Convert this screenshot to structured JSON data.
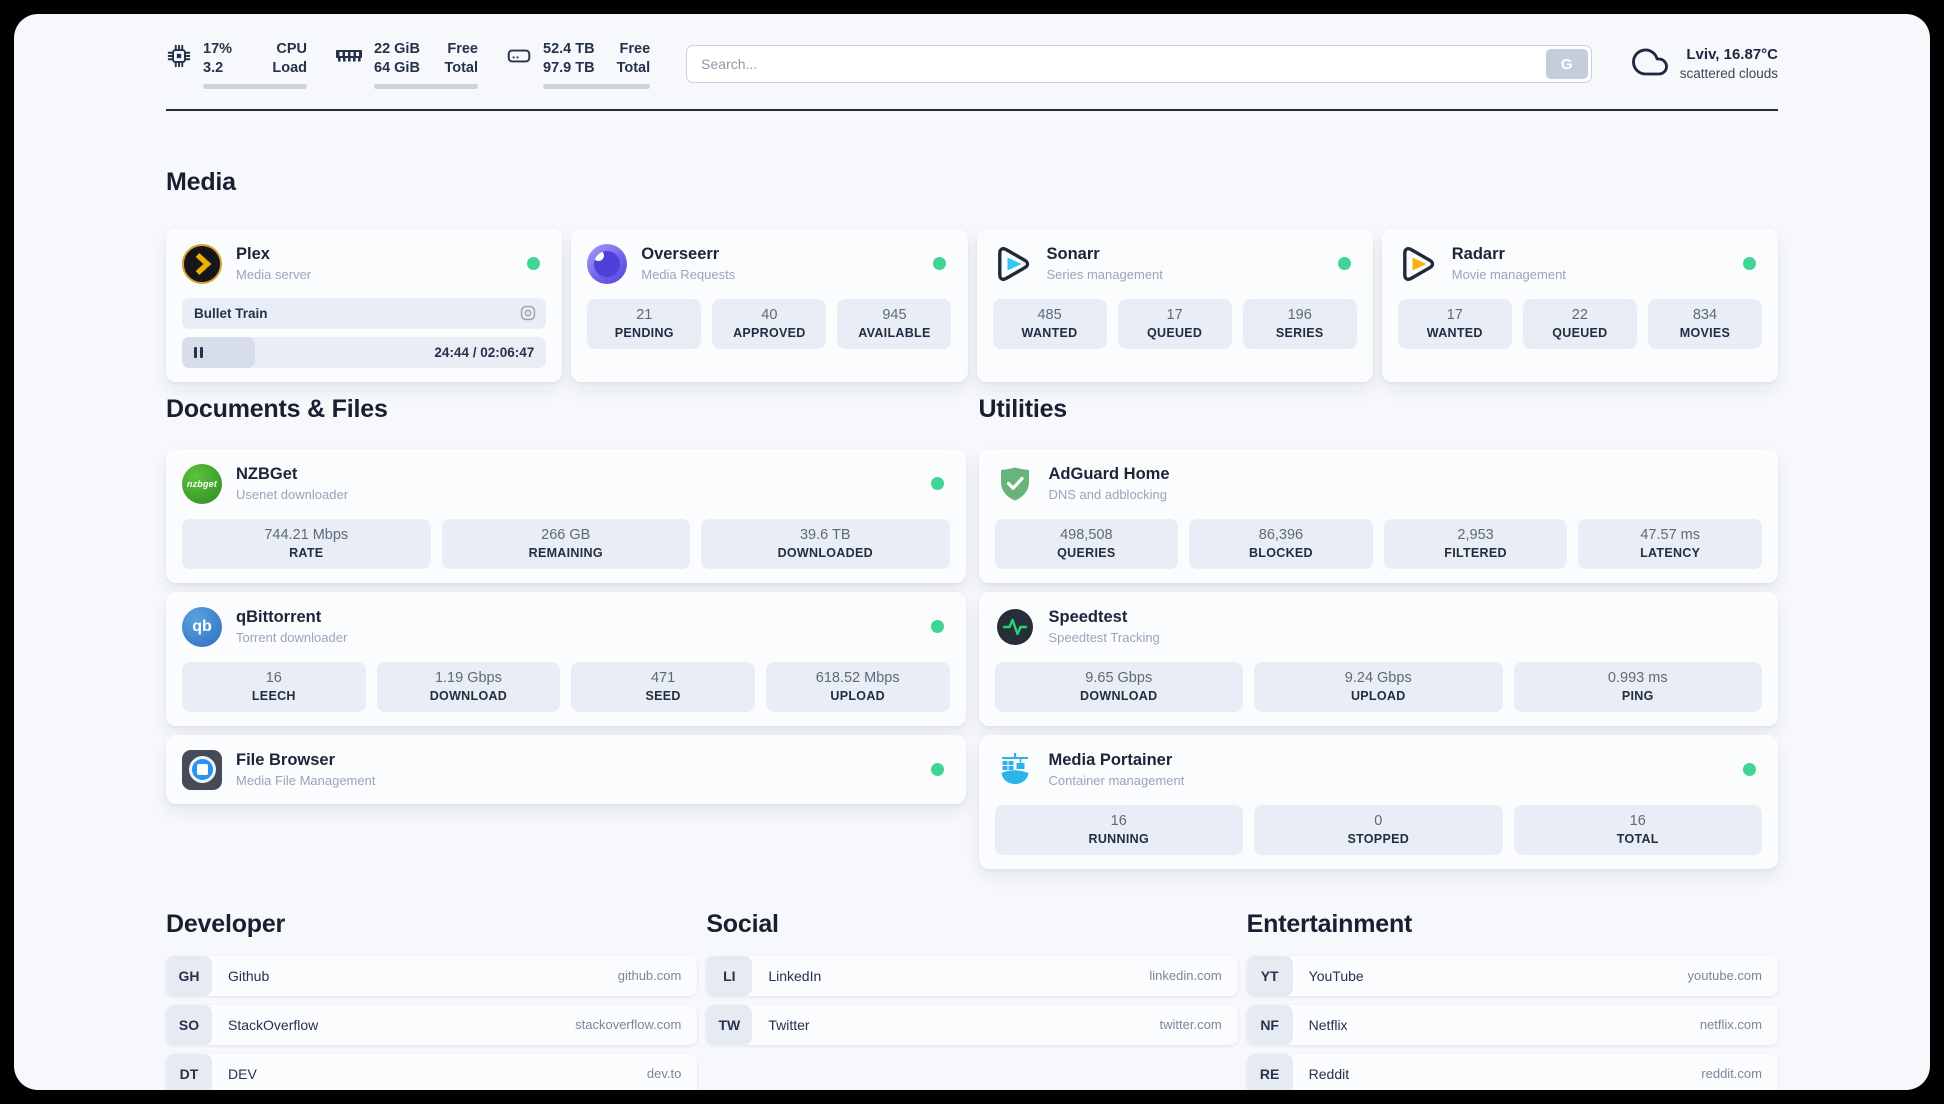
{
  "theme": {
    "status_green": "#40d495",
    "panel_bg": "#f6f8fb",
    "card_bg": "#fbfcfe",
    "stat_bg": "#e9eef6"
  },
  "header": {
    "system": {
      "cpu": {
        "top_value": "17%",
        "top_label": "CPU",
        "bottom_value": "3.2",
        "bottom_label": "Load",
        "percent": 17
      },
      "memory": {
        "top_value": "22 GiB",
        "top_label": "Free",
        "bottom_value": "64 GiB",
        "bottom_label": "Total",
        "percent": 66
      },
      "storage": {
        "top_value": "52.4 TB",
        "top_label": "Free",
        "bottom_value": "97.9 TB",
        "bottom_label": "Total",
        "percent": 46
      }
    },
    "search": {
      "placeholder": "Search...",
      "engine_button": "G"
    },
    "weather": {
      "location": "Lviv, 16.87°C",
      "condition": "scattered clouds"
    }
  },
  "sections": {
    "media": {
      "title": "Media",
      "plex": {
        "name": "Plex",
        "description": "Media server",
        "now_playing": "Bullet Train",
        "time_display": "24:44 / 02:06:47",
        "progress_percent": 20
      },
      "overseerr": {
        "name": "Overseerr",
        "description": "Media Requests",
        "stats": [
          {
            "value": "21",
            "label": "PENDING"
          },
          {
            "value": "40",
            "label": "APPROVED"
          },
          {
            "value": "945",
            "label": "AVAILABLE"
          }
        ]
      },
      "sonarr": {
        "name": "Sonarr",
        "description": "Series management",
        "stats": [
          {
            "value": "485",
            "label": "WANTED"
          },
          {
            "value": "17",
            "label": "QUEUED"
          },
          {
            "value": "196",
            "label": "SERIES"
          }
        ]
      },
      "radarr": {
        "name": "Radarr",
        "description": "Movie management",
        "stats": [
          {
            "value": "17",
            "label": "WANTED"
          },
          {
            "value": "22",
            "label": "QUEUED"
          },
          {
            "value": "834",
            "label": "MOVIES"
          }
        ]
      }
    },
    "documents": {
      "title": "Documents & Files",
      "nzbget": {
        "name": "NZBGet",
        "description": "Usenet downloader",
        "icon_text": "nzbget",
        "stats": [
          {
            "value": "744.21 Mbps",
            "label": "RATE"
          },
          {
            "value": "266 GB",
            "label": "REMAINING"
          },
          {
            "value": "39.6 TB",
            "label": "DOWNLOADED"
          }
        ]
      },
      "qbittorrent": {
        "name": "qBittorrent",
        "description": "Torrent downloader",
        "icon_text": "qb",
        "stats": [
          {
            "value": "16",
            "label": "LEECH"
          },
          {
            "value": "1.19 Gbps",
            "label": "DOWNLOAD"
          },
          {
            "value": "471",
            "label": "SEED"
          },
          {
            "value": "618.52 Mbps",
            "label": "UPLOAD"
          }
        ]
      },
      "filebrowser": {
        "name": "File Browser",
        "description": "Media File Management"
      }
    },
    "utilities": {
      "title": "Utilities",
      "adguard": {
        "name": "AdGuard Home",
        "description": "DNS and adblocking",
        "stats": [
          {
            "value": "498,508",
            "label": "QUERIES"
          },
          {
            "value": "86,396",
            "label": "BLOCKED"
          },
          {
            "value": "2,953",
            "label": "FILTERED"
          },
          {
            "value": "47.57 ms",
            "label": "LATENCY"
          }
        ]
      },
      "speedtest": {
        "name": "Speedtest",
        "description": "Speedtest Tracking",
        "stats": [
          {
            "value": "9.65 Gbps",
            "label": "DOWNLOAD"
          },
          {
            "value": "9.24 Gbps",
            "label": "UPLOAD"
          },
          {
            "value": "0.993 ms",
            "label": "PING"
          }
        ]
      },
      "portainer": {
        "name": "Media Portainer",
        "description": "Container management",
        "stats": [
          {
            "value": "16",
            "label": "RUNNING"
          },
          {
            "value": "0",
            "label": "STOPPED"
          },
          {
            "value": "16",
            "label": "TOTAL"
          }
        ]
      }
    },
    "bookmarks": [
      {
        "title": "Developer",
        "links": [
          {
            "abbr": "GH",
            "label": "Github",
            "url": "github.com"
          },
          {
            "abbr": "SO",
            "label": "StackOverflow",
            "url": "stackoverflow.com"
          },
          {
            "abbr": "DT",
            "label": "DEV",
            "url": "dev.to"
          }
        ]
      },
      {
        "title": "Social",
        "links": [
          {
            "abbr": "LI",
            "label": "LinkedIn",
            "url": "linkedin.com"
          },
          {
            "abbr": "TW",
            "label": "Twitter",
            "url": "twitter.com"
          }
        ]
      },
      {
        "title": "Entertainment",
        "links": [
          {
            "abbr": "YT",
            "label": "YouTube",
            "url": "youtube.com"
          },
          {
            "abbr": "NF",
            "label": "Netflix",
            "url": "netflix.com"
          },
          {
            "abbr": "RE",
            "label": "Reddit",
            "url": "reddit.com"
          }
        ]
      }
    ]
  }
}
